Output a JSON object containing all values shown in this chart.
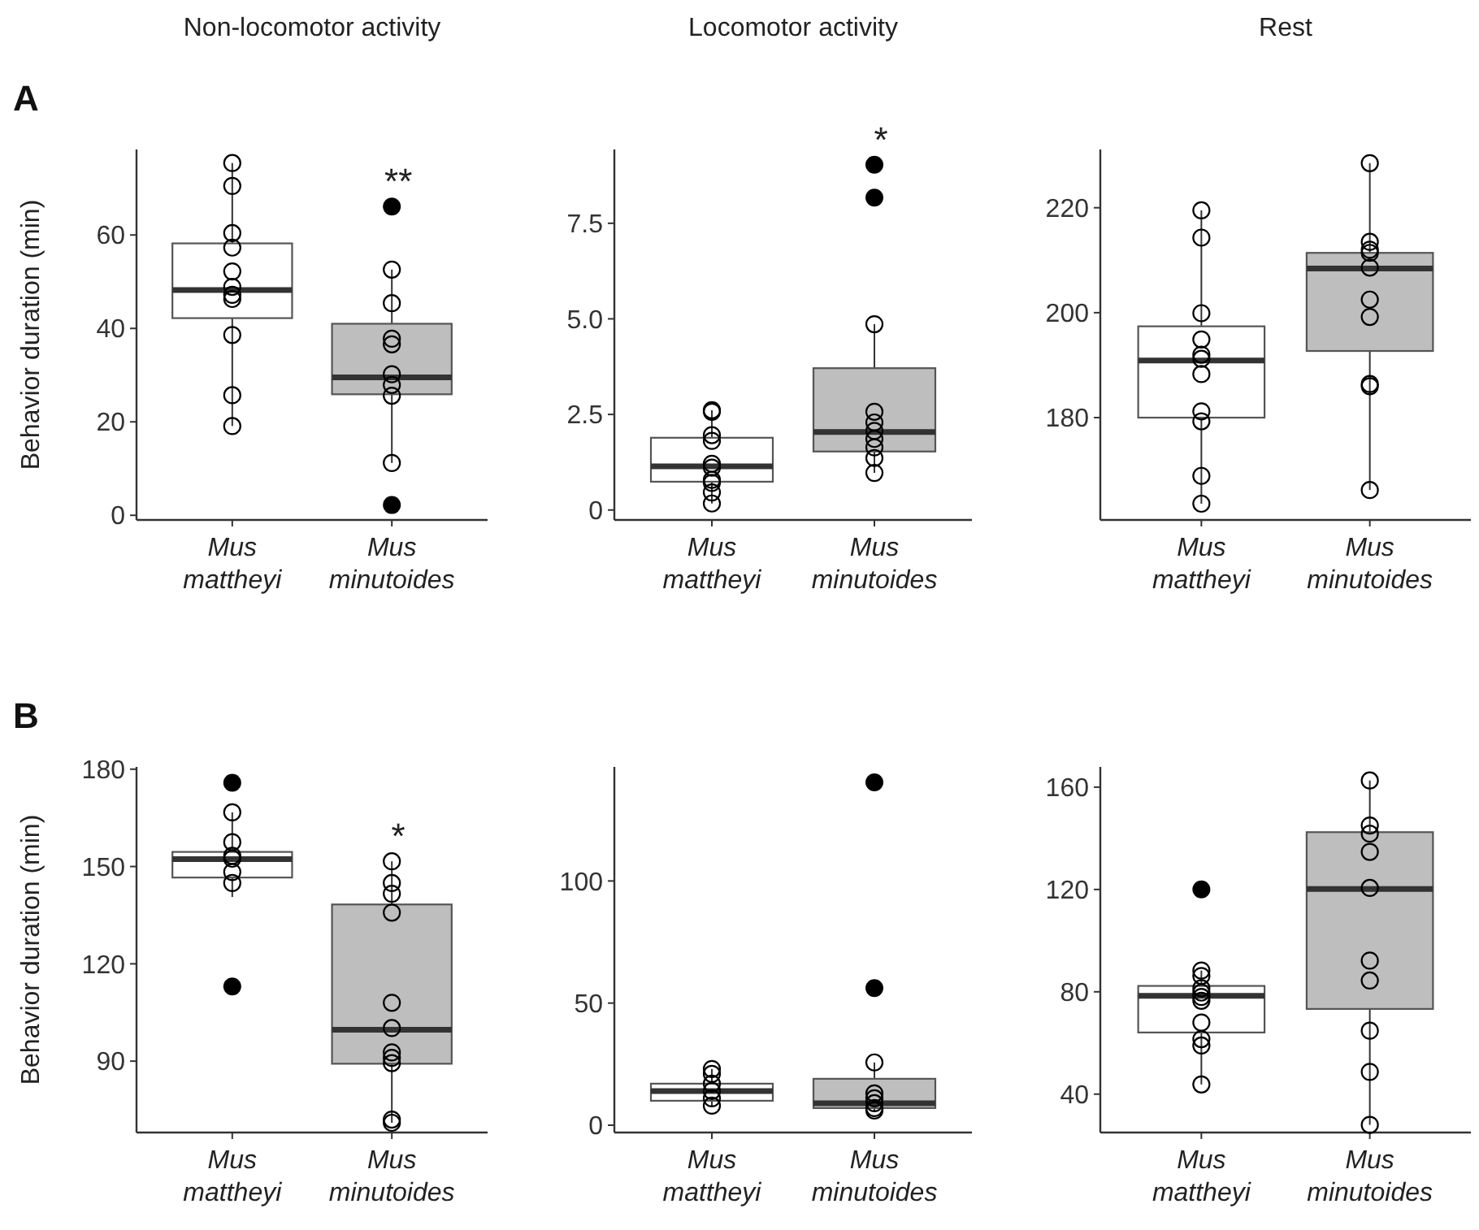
{
  "chart_data": [
    {
      "type": "box",
      "title": "Non-locomotor activity",
      "ylabel": "Behavior duration (min)",
      "annotations": [
        "A",
        "**"
      ],
      "categories": [
        "Mus mattheyi",
        "Mus minutoides"
      ],
      "colors": [
        "#ffffff",
        "#bebebe"
      ],
      "ylim": [
        -1,
        78.3
      ],
      "yticks": [
        0,
        20,
        40,
        60
      ],
      "marker": "circle",
      "boxes": [
        {
          "low": 19.1,
          "q1": 42.2,
          "median": 48.2,
          "q3": 58.2,
          "high": 75.4
        },
        {
          "low": 11.2,
          "q1": 25.9,
          "median": 29.5,
          "q3": 41.0,
          "high": 52.6,
          "outliers": [
            66.1,
            2.2
          ]
        }
      ],
      "series": [
        {
          "type": "scatter",
          "color": "#000000",
          "x": [
            "Mus mattheyi",
            "Mus mattheyi",
            "Mus mattheyi",
            "Mus mattheyi",
            "Mus mattheyi",
            "Mus mattheyi",
            "Mus mattheyi",
            "Mus mattheyi",
            "Mus mattheyi",
            "Mus mattheyi",
            "Mus mattheyi",
            "Mus minutoides",
            "Mus minutoides",
            "Mus minutoides",
            "Mus minutoides",
            "Mus minutoides",
            "Mus minutoides",
            "Mus minutoides",
            "Mus minutoides"
          ],
          "values": [
            75.4,
            70.5,
            60.4,
            57.3,
            52.2,
            48.9,
            47.2,
            46.3,
            38.6,
            25.7,
            19.1,
            52.6,
            45.4,
            37.8,
            36.6,
            30.2,
            27.9,
            25.6,
            11.2
          ]
        }
      ]
    },
    {
      "type": "box",
      "title": "Locomotor activity",
      "annotations": [
        "*"
      ],
      "categories": [
        "Mus mattheyi",
        "Mus minutoides"
      ],
      "colors": [
        "#ffffff",
        "#bebebe"
      ],
      "ylim": [
        -0.26,
        9.43
      ],
      "yticks": [
        0,
        2.5,
        {
          "value": 5,
          "label": "5.0"
        },
        7.5
      ],
      "marker": "circle",
      "boxes": [
        {
          "low": 0.17,
          "q1": 0.74,
          "median": 1.14,
          "q3": 1.89,
          "high": 2.61
        },
        {
          "low": 0.97,
          "q1": 1.53,
          "median": 2.04,
          "q3": 3.71,
          "high": 4.86,
          "outliers": [
            9.03,
            8.17
          ]
        }
      ],
      "series": [
        {
          "type": "scatter",
          "color": "#000000",
          "x": [
            "Mus mattheyi",
            "Mus mattheyi",
            "Mus mattheyi",
            "Mus mattheyi",
            "Mus mattheyi",
            "Mus mattheyi",
            "Mus mattheyi",
            "Mus mattheyi",
            "Mus mattheyi",
            "Mus mattheyi",
            "Mus minutoides",
            "Mus minutoides",
            "Mus minutoides",
            "Mus minutoides",
            "Mus minutoides",
            "Mus minutoides",
            "Mus minutoides",
            "Mus minutoides"
          ],
          "values": [
            2.61,
            2.57,
            1.96,
            1.81,
            1.21,
            1.11,
            0.79,
            0.71,
            0.46,
            0.17,
            4.86,
            2.57,
            2.29,
            2.07,
            1.86,
            1.64,
            1.36,
            0.97
          ]
        }
      ]
    },
    {
      "type": "box",
      "title": "Rest",
      "categories": [
        "Mus mattheyi",
        "Mus minutoides"
      ],
      "colors": [
        "#ffffff",
        "#bebebe"
      ],
      "ylim": [
        160.5,
        231.1
      ],
      "yticks": [
        180,
        200,
        220
      ],
      "marker": "circle",
      "boxes": [
        {
          "low": 163.6,
          "q1": 180,
          "median": 190.9,
          "q3": 197.4,
          "high": 219.5
        },
        {
          "low": 166.2,
          "q1": 192.7,
          "median": 208.4,
          "q3": 211.4,
          "high": 228.5
        }
      ],
      "series": [
        {
          "type": "scatter",
          "color": "#000000",
          "x": [
            "Mus mattheyi",
            "Mus mattheyi",
            "Mus mattheyi",
            "Mus mattheyi",
            "Mus mattheyi",
            "Mus mattheyi",
            "Mus mattheyi",
            "Mus mattheyi",
            "Mus mattheyi",
            "Mus mattheyi",
            "Mus mattheyi",
            "Mus minutoides",
            "Mus minutoides",
            "Mus minutoides",
            "Mus minutoides",
            "Mus minutoides",
            "Mus minutoides",
            "Mus minutoides",
            "Mus minutoides",
            "Mus minutoides",
            "Mus minutoides"
          ],
          "values": [
            219.5,
            214.3,
            199.9,
            194.9,
            192,
            191.2,
            188.3,
            181.2,
            179.3,
            168.9,
            163.6,
            228.5,
            213.5,
            212,
            211.4,
            208.6,
            202.5,
            199.2,
            186.4,
            186,
            166.2
          ]
        }
      ]
    },
    {
      "type": "box",
      "ylabel": "Behavior duration (min)",
      "annotations": [
        "B",
        "*"
      ],
      "categories": [
        "Mus mattheyi",
        "Mus minutoides"
      ],
      "colors": [
        "#ffffff",
        "#bebebe"
      ],
      "ylim": [
        68,
        180.7
      ],
      "yticks": [
        90,
        120,
        150,
        180
      ],
      "marker": "circle",
      "boxes": [
        {
          "low": 140.6,
          "q1": 146.6,
          "median": 152.3,
          "q3": 154.5,
          "high": 166.7,
          "outliers": [
            175.8,
            113
          ]
        },
        {
          "low": 71,
          "q1": 89.2,
          "median": 99.7,
          "q3": 138.3,
          "high": 151.6
        }
      ],
      "series": [
        {
          "type": "scatter",
          "color": "#000000",
          "x": [
            "Mus mattheyi",
            "Mus mattheyi",
            "Mus mattheyi",
            "Mus mattheyi",
            "Mus mattheyi",
            "Mus mattheyi",
            "Mus minutoides",
            "Mus minutoides",
            "Mus minutoides",
            "Mus minutoides",
            "Mus minutoides",
            "Mus minutoides",
            "Mus minutoides",
            "Mus minutoides",
            "Mus minutoides",
            "Mus minutoides",
            "Mus minutoides"
          ],
          "values": [
            166.7,
            157.5,
            153.3,
            152.4,
            148.3,
            144.9,
            151.6,
            144.9,
            141.6,
            135.8,
            108,
            100.2,
            92.7,
            91,
            89.4,
            72,
            71
          ]
        }
      ]
    },
    {
      "type": "box",
      "categories": [
        "Mus mattheyi",
        "Mus minutoides"
      ],
      "colors": [
        "#ffffff",
        "#bebebe"
      ],
      "ylim": [
        -3,
        146.7
      ],
      "yticks": [
        0,
        50,
        100
      ],
      "marker": "circle",
      "boxes": [
        {
          "low": 8,
          "q1": 10,
          "median": 14,
          "q3": 17,
          "high": 23
        },
        {
          "low": 6,
          "q1": 7,
          "median": 9,
          "q3": 19,
          "high": 25.7,
          "outliers": [
            140.4,
            56.1
          ]
        }
      ],
      "series": [
        {
          "type": "scatter",
          "color": "#000000",
          "x": [
            "Mus mattheyi",
            "Mus mattheyi",
            "Mus mattheyi",
            "Mus mattheyi",
            "Mus mattheyi",
            "Mus mattheyi",
            "Mus minutoides",
            "Mus minutoides",
            "Mus minutoides",
            "Mus minutoides",
            "Mus minutoides",
            "Mus minutoides"
          ],
          "values": [
            23,
            21,
            17,
            14,
            11,
            8,
            25.7,
            13,
            11,
            9,
            7,
            6
          ]
        }
      ]
    },
    {
      "type": "box",
      "categories": [
        "Mus mattheyi",
        "Mus minutoides"
      ],
      "colors": [
        "#ffffff",
        "#bebebe"
      ],
      "ylim": [
        25,
        167.9
      ],
      "yticks": [
        40,
        80,
        120,
        160
      ],
      "marker": "circle",
      "boxes": [
        {
          "low": 43.8,
          "q1": 64.1,
          "median": 78.4,
          "q3": 82.3,
          "high": 88.3,
          "outliers": [
            120
          ]
        },
        {
          "low": 28,
          "q1": 73.3,
          "median": 120.2,
          "q3": 142.4,
          "high": 162.6
        }
      ],
      "series": [
        {
          "type": "scatter",
          "color": "#000000",
          "x": [
            "Mus mattheyi",
            "Mus mattheyi",
            "Mus mattheyi",
            "Mus mattheyi",
            "Mus mattheyi",
            "Mus mattheyi",
            "Mus mattheyi",
            "Mus mattheyi",
            "Mus mattheyi",
            "Mus mattheyi",
            "Mus minutoides",
            "Mus minutoides",
            "Mus minutoides",
            "Mus minutoides",
            "Mus minutoides",
            "Mus minutoides",
            "Mus minutoides",
            "Mus minutoides",
            "Mus minutoides",
            "Mus minutoides"
          ],
          "values": [
            88.3,
            86.2,
            81.4,
            79.7,
            78,
            76.5,
            68,
            61.5,
            59,
            43.8,
            162.6,
            145,
            141.8,
            134.7,
            120.6,
            92.2,
            84.4,
            64.8,
            48.7,
            28
          ]
        }
      ]
    }
  ]
}
